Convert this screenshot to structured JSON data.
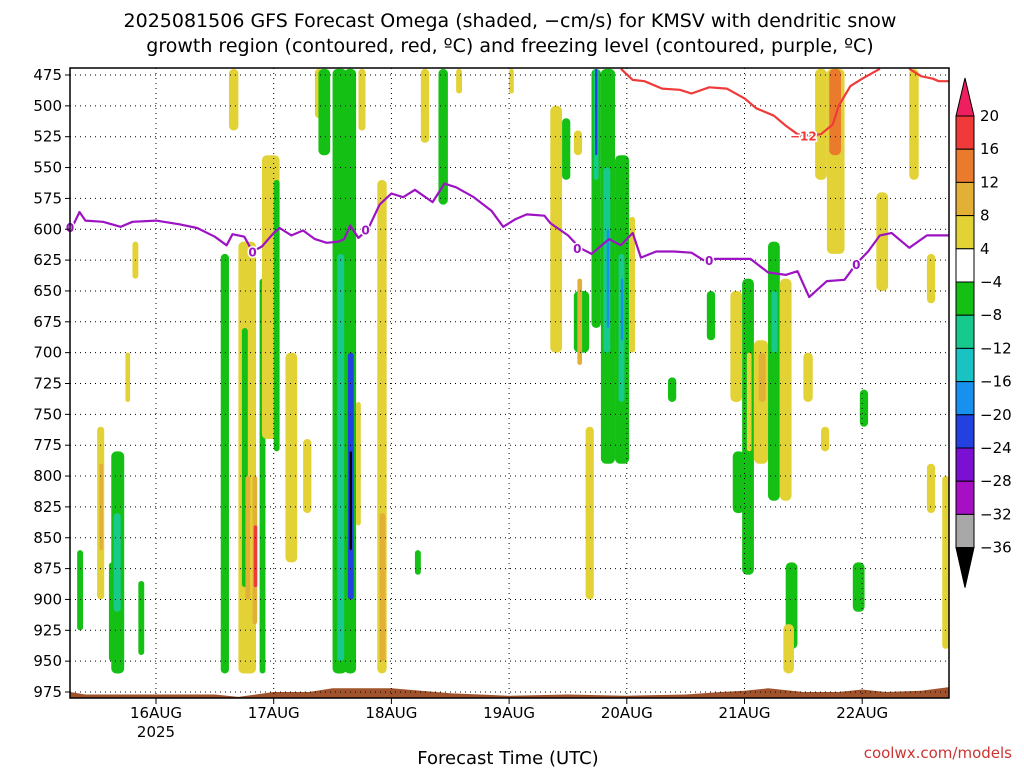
{
  "chart_data": {
    "type": "heatmap",
    "title_line1": "2025081506 GFS Forecast Omega (shaded, −cm/s) for KMSV with dendritic snow",
    "title_line2": "growth region (contoured, red, ºC) and freezing level (contoured, purple, ºC)",
    "xlabel": "Forecast Time (UTC)",
    "ylabel": "",
    "credit": "coolwx.com/models",
    "x_ticks": [
      "16AUG",
      "17AUG",
      "18AUG",
      "19AUG",
      "20AUG",
      "21AUG",
      "22AUG"
    ],
    "x_year_label": "2025",
    "x_range_days": [
      15.2,
      22.75
    ],
    "y_ticks": [
      475,
      500,
      525,
      550,
      575,
      600,
      625,
      650,
      675,
      700,
      725,
      750,
      775,
      800,
      825,
      850,
      875,
      900,
      925,
      950,
      975
    ],
    "y_range_hpa": [
      470,
      980
    ],
    "grid": true,
    "colorbar": {
      "labels": [
        "20",
        "16",
        "12",
        "8",
        "4",
        "−4",
        "−8",
        "−12",
        "−16",
        "−20",
        "−24",
        "−28",
        "−32",
        "−36"
      ],
      "colors": [
        "#ee1f5e",
        "#f03a3a",
        "#ea7b2c",
        "#e3b036",
        "#e3d236",
        "#ffffff",
        "#15c015",
        "#17c98c",
        "#19c3c3",
        "#1890ee",
        "#2241e0",
        "#7b10d2",
        "#a70fc4",
        "#a8a8a8",
        "#000000"
      ]
    },
    "freezing_level": {
      "label": "0",
      "color": "#9d13c4",
      "points": [
        [
          15.2,
          598
        ],
        [
          15.3,
          596
        ],
        [
          15.35,
          586
        ],
        [
          15.4,
          593
        ],
        [
          15.55,
          594
        ],
        [
          15.7,
          598
        ],
        [
          15.8,
          594
        ],
        [
          16.0,
          593
        ],
        [
          16.2,
          596
        ],
        [
          16.35,
          599
        ],
        [
          16.5,
          606
        ],
        [
          16.6,
          613
        ],
        [
          16.65,
          604
        ],
        [
          16.75,
          606
        ],
        [
          16.82,
          618
        ],
        [
          16.9,
          614
        ],
        [
          17.0,
          603
        ],
        [
          17.05,
          599
        ],
        [
          17.15,
          605
        ],
        [
          17.25,
          601
        ],
        [
          17.35,
          608
        ],
        [
          17.45,
          611
        ],
        [
          17.55,
          610
        ],
        [
          17.6,
          608
        ],
        [
          17.65,
          597
        ],
        [
          17.72,
          607
        ],
        [
          17.8,
          600
        ],
        [
          17.9,
          580
        ],
        [
          18.0,
          571
        ],
        [
          18.1,
          574
        ],
        [
          18.2,
          568
        ],
        [
          18.35,
          578
        ],
        [
          18.45,
          563
        ],
        [
          18.55,
          566
        ],
        [
          18.7,
          574
        ],
        [
          18.85,
          585
        ],
        [
          18.95,
          598
        ],
        [
          19.05,
          592
        ],
        [
          19.15,
          588
        ],
        [
          19.3,
          589
        ],
        [
          19.35,
          595
        ],
        [
          19.5,
          605
        ],
        [
          19.6,
          615
        ],
        [
          19.7,
          620
        ],
        [
          19.85,
          608
        ],
        [
          19.95,
          613
        ],
        [
          20.05,
          603
        ],
        [
          20.12,
          623
        ],
        [
          20.25,
          618
        ],
        [
          20.4,
          618
        ],
        [
          20.55,
          619
        ],
        [
          20.65,
          625
        ],
        [
          20.75,
          624
        ],
        [
          20.9,
          624
        ],
        [
          21.05,
          624
        ],
        [
          21.2,
          635
        ],
        [
          21.35,
          637
        ],
        [
          21.45,
          634
        ],
        [
          21.55,
          655
        ],
        [
          21.7,
          642
        ],
        [
          21.85,
          641
        ],
        [
          21.95,
          628
        ],
        [
          22.05,
          618
        ],
        [
          22.15,
          605
        ],
        [
          22.25,
          603
        ],
        [
          22.4,
          615
        ],
        [
          22.55,
          605
        ],
        [
          22.75,
          605
        ]
      ]
    },
    "dgz_contour": {
      "label": "−12",
      "color": "#f03a3a",
      "points": [
        [
          19.95,
          470
        ],
        [
          20.05,
          479
        ],
        [
          20.15,
          480
        ],
        [
          20.3,
          486
        ],
        [
          20.45,
          487
        ],
        [
          20.55,
          490
        ],
        [
          20.7,
          485
        ],
        [
          20.85,
          486
        ],
        [
          21.0,
          494
        ],
        [
          21.1,
          502
        ],
        [
          21.25,
          508
        ],
        [
          21.35,
          516
        ],
        [
          21.45,
          523
        ],
        [
          21.55,
          524
        ],
        [
          21.65,
          523
        ],
        [
          21.75,
          515
        ],
        [
          21.8,
          500
        ],
        [
          21.9,
          484
        ],
        [
          22.0,
          478
        ],
        [
          22.15,
          470
        ]
      ],
      "points2": [
        [
          22.4,
          470
        ],
        [
          22.5,
          476
        ],
        [
          22.6,
          478
        ],
        [
          22.65,
          480
        ],
        [
          22.75,
          480
        ]
      ]
    },
    "shaded_regions": [
      {
        "x0": 15.22,
        "x1": 15.26,
        "p0": 470,
        "p1": 510,
        "value": 6
      },
      {
        "x0": 15.22,
        "x1": 15.26,
        "p0": 835,
        "p1": 880,
        "value": -8
      },
      {
        "x0": 15.33,
        "x1": 15.38,
        "p0": 860,
        "p1": 925,
        "value": -8
      },
      {
        "x0": 15.5,
        "x1": 15.56,
        "p0": 760,
        "p1": 900,
        "value": 6
      },
      {
        "x0": 15.52,
        "x1": 15.55,
        "p0": 790,
        "p1": 860,
        "value": 8
      },
      {
        "x0": 15.6,
        "x1": 15.65,
        "p0": 870,
        "p1": 950,
        "value": -8
      },
      {
        "x0": 15.62,
        "x1": 15.73,
        "p0": 780,
        "p1": 960,
        "value": -8
      },
      {
        "x0": 15.64,
        "x1": 15.7,
        "p0": 830,
        "p1": 910,
        "value": -12
      },
      {
        "x0": 15.74,
        "x1": 15.78,
        "p0": 700,
        "p1": 740,
        "value": 6
      },
      {
        "x0": 15.85,
        "x1": 15.9,
        "p0": 885,
        "p1": 945,
        "value": -8
      },
      {
        "x0": 15.8,
        "x1": 15.85,
        "p0": 610,
        "p1": 640,
        "value": 6
      },
      {
        "x0": 16.55,
        "x1": 16.62,
        "p0": 620,
        "p1": 960,
        "value": -8
      },
      {
        "x0": 16.62,
        "x1": 16.7,
        "p0": 470,
        "p1": 520,
        "value": 6
      },
      {
        "x0": 16.7,
        "x1": 16.85,
        "p0": 610,
        "p1": 960,
        "value": 6
      },
      {
        "x0": 16.73,
        "x1": 16.78,
        "p0": 680,
        "p1": 890,
        "value": -8
      },
      {
        "x0": 16.76,
        "x1": 16.8,
        "p0": 800,
        "p1": 900,
        "value": 9
      },
      {
        "x0": 16.82,
        "x1": 16.86,
        "p0": 800,
        "p1": 920,
        "value": 10
      },
      {
        "x0": 16.83,
        "x1": 16.86,
        "p0": 840,
        "p1": 890,
        "value": 16
      },
      {
        "x0": 16.88,
        "x1": 16.93,
        "p0": 640,
        "p1": 960,
        "value": -8
      },
      {
        "x0": 16.9,
        "x1": 17.05,
        "p0": 540,
        "p1": 770,
        "value": 6
      },
      {
        "x0": 17.0,
        "x1": 17.05,
        "p0": 560,
        "p1": 780,
        "value": -8
      },
      {
        "x0": 17.1,
        "x1": 17.2,
        "p0": 700,
        "p1": 870,
        "value": 6
      },
      {
        "x0": 17.25,
        "x1": 17.32,
        "p0": 770,
        "p1": 830,
        "value": 6
      },
      {
        "x0": 17.35,
        "x1": 17.42,
        "p0": 470,
        "p1": 510,
        "value": 6
      },
      {
        "x0": 17.38,
        "x1": 17.48,
        "p0": 470,
        "p1": 540,
        "value": -8
      },
      {
        "x0": 17.5,
        "x1": 17.62,
        "p0": 470,
        "p1": 960,
        "value": -8
      },
      {
        "x0": 17.54,
        "x1": 17.6,
        "p0": 620,
        "p1": 950,
        "value": -12
      },
      {
        "x0": 17.6,
        "x1": 17.7,
        "p0": 470,
        "p1": 960,
        "value": -8
      },
      {
        "x0": 17.63,
        "x1": 17.68,
        "p0": 700,
        "p1": 900,
        "value": -26
      },
      {
        "x0": 17.645,
        "x1": 17.665,
        "p0": 780,
        "p1": 860,
        "value": -40
      },
      {
        "x0": 17.7,
        "x1": 17.74,
        "p0": 740,
        "p1": 840,
        "value": 6
      },
      {
        "x0": 17.72,
        "x1": 17.78,
        "p0": 470,
        "p1": 520,
        "value": 6
      },
      {
        "x0": 17.88,
        "x1": 17.96,
        "p0": 560,
        "p1": 960,
        "value": 6
      },
      {
        "x0": 17.9,
        "x1": 17.95,
        "p0": 830,
        "p1": 950,
        "value": 8
      },
      {
        "x0": 18.2,
        "x1": 18.25,
        "p0": 860,
        "p1": 880,
        "value": -8
      },
      {
        "x0": 18.25,
        "x1": 18.32,
        "p0": 470,
        "p1": 530,
        "value": 6
      },
      {
        "x0": 18.4,
        "x1": 18.48,
        "p0": 470,
        "p1": 580,
        "value": -8
      },
      {
        "x0": 18.55,
        "x1": 18.6,
        "p0": 470,
        "p1": 490,
        "value": 6
      },
      {
        "x0": 19.0,
        "x1": 19.04,
        "p0": 470,
        "p1": 490,
        "value": 6
      },
      {
        "x0": 19.35,
        "x1": 19.45,
        "p0": 500,
        "p1": 700,
        "value": 6
      },
      {
        "x0": 19.45,
        "x1": 19.52,
        "p0": 510,
        "p1": 560,
        "value": -8
      },
      {
        "x0": 19.55,
        "x1": 19.62,
        "p0": 520,
        "p1": 540,
        "value": 6
      },
      {
        "x0": 19.55,
        "x1": 19.68,
        "p0": 650,
        "p1": 700,
        "value": -8
      },
      {
        "x0": 19.58,
        "x1": 19.62,
        "p0": 640,
        "p1": 710,
        "value": 8
      },
      {
        "x0": 19.65,
        "x1": 19.72,
        "p0": 760,
        "p1": 900,
        "value": 6
      },
      {
        "x0": 19.7,
        "x1": 19.78,
        "p0": 470,
        "p1": 680,
        "value": -8
      },
      {
        "x0": 19.72,
        "x1": 19.76,
        "p0": 470,
        "p1": 560,
        "value": -14
      },
      {
        "x0": 19.73,
        "x1": 19.75,
        "p0": 470,
        "p1": 540,
        "value": -26
      },
      {
        "x0": 19.78,
        "x1": 19.9,
        "p0": 470,
        "p1": 790,
        "value": -8
      },
      {
        "x0": 19.8,
        "x1": 19.86,
        "p0": 550,
        "p1": 700,
        "value": -14
      },
      {
        "x0": 19.83,
        "x1": 19.85,
        "p0": 600,
        "p1": 680,
        "value": -22
      },
      {
        "x0": 19.9,
        "x1": 20.02,
        "p0": 540,
        "p1": 790,
        "value": -8
      },
      {
        "x0": 19.93,
        "x1": 19.98,
        "p0": 620,
        "p1": 740,
        "value": -14
      },
      {
        "x0": 19.95,
        "x1": 19.97,
        "p0": 640,
        "p1": 690,
        "value": -22
      },
      {
        "x0": 20.02,
        "x1": 20.07,
        "p0": 590,
        "p1": 700,
        "value": 6
      },
      {
        "x0": 20.35,
        "x1": 20.42,
        "p0": 720,
        "p1": 740,
        "value": -8
      },
      {
        "x0": 20.68,
        "x1": 20.75,
        "p0": 650,
        "p1": 690,
        "value": -8
      },
      {
        "x0": 20.88,
        "x1": 20.98,
        "p0": 650,
        "p1": 740,
        "value": 6
      },
      {
        "x0": 20.9,
        "x1": 21.0,
        "p0": 780,
        "p1": 830,
        "value": -8
      },
      {
        "x0": 20.98,
        "x1": 21.08,
        "p0": 640,
        "p1": 880,
        "value": -8
      },
      {
        "x0": 21.02,
        "x1": 21.06,
        "p0": 700,
        "p1": 780,
        "value": 6
      },
      {
        "x0": 21.08,
        "x1": 21.2,
        "p0": 690,
        "p1": 790,
        "value": 6
      },
      {
        "x0": 21.12,
        "x1": 21.18,
        "p0": 700,
        "p1": 740,
        "value": 10
      },
      {
        "x0": 21.2,
        "x1": 21.3,
        "p0": 610,
        "p1": 820,
        "value": -8
      },
      {
        "x0": 21.23,
        "x1": 21.28,
        "p0": 650,
        "p1": 700,
        "value": -14
      },
      {
        "x0": 21.3,
        "x1": 21.4,
        "p0": 640,
        "p1": 820,
        "value": 6
      },
      {
        "x0": 21.35,
        "x1": 21.45,
        "p0": 870,
        "p1": 940,
        "value": -8
      },
      {
        "x0": 21.33,
        "x1": 21.42,
        "p0": 920,
        "p1": 960,
        "value": 6
      },
      {
        "x0": 21.5,
        "x1": 21.58,
        "p0": 700,
        "p1": 740,
        "value": 6
      },
      {
        "x0": 21.65,
        "x1": 21.72,
        "p0": 760,
        "p1": 780,
        "value": 6
      },
      {
        "x0": 21.6,
        "x1": 21.7,
        "p0": 470,
        "p1": 560,
        "value": 6
      },
      {
        "x0": 21.7,
        "x1": 21.85,
        "p0": 470,
        "p1": 620,
        "value": 6
      },
      {
        "x0": 21.72,
        "x1": 21.82,
        "p0": 470,
        "p1": 540,
        "value": 12
      },
      {
        "x0": 21.92,
        "x1": 22.02,
        "p0": 870,
        "p1": 910,
        "value": -8
      },
      {
        "x0": 21.98,
        "x1": 22.05,
        "p0": 730,
        "p1": 760,
        "value": -8
      },
      {
        "x0": 22.12,
        "x1": 22.22,
        "p0": 570,
        "p1": 650,
        "value": 6
      },
      {
        "x0": 22.4,
        "x1": 22.48,
        "p0": 470,
        "p1": 560,
        "value": 6
      },
      {
        "x0": 22.55,
        "x1": 22.62,
        "p0": 790,
        "p1": 830,
        "value": 6
      },
      {
        "x0": 22.55,
        "x1": 22.62,
        "p0": 620,
        "p1": 660,
        "value": 6
      },
      {
        "x0": 22.68,
        "x1": 22.75,
        "p0": 800,
        "p1": 940,
        "value": 6
      }
    ],
    "terrain": {
      "color": "#a0522d",
      "points": [
        [
          15.2,
          975
        ],
        [
          15.4,
          977
        ],
        [
          16.0,
          977
        ],
        [
          16.5,
          977
        ],
        [
          16.7,
          979
        ],
        [
          17.0,
          975
        ],
        [
          17.3,
          975
        ],
        [
          17.5,
          972
        ],
        [
          18.0,
          972
        ],
        [
          18.5,
          976
        ],
        [
          19.0,
          978
        ],
        [
          19.5,
          977
        ],
        [
          20.0,
          978
        ],
        [
          20.5,
          977
        ],
        [
          20.8,
          975
        ],
        [
          21.0,
          974
        ],
        [
          21.2,
          972
        ],
        [
          21.5,
          975
        ],
        [
          21.8,
          975
        ],
        [
          22.0,
          973
        ],
        [
          22.2,
          975
        ],
        [
          22.5,
          974
        ],
        [
          22.75,
          971
        ]
      ]
    }
  }
}
